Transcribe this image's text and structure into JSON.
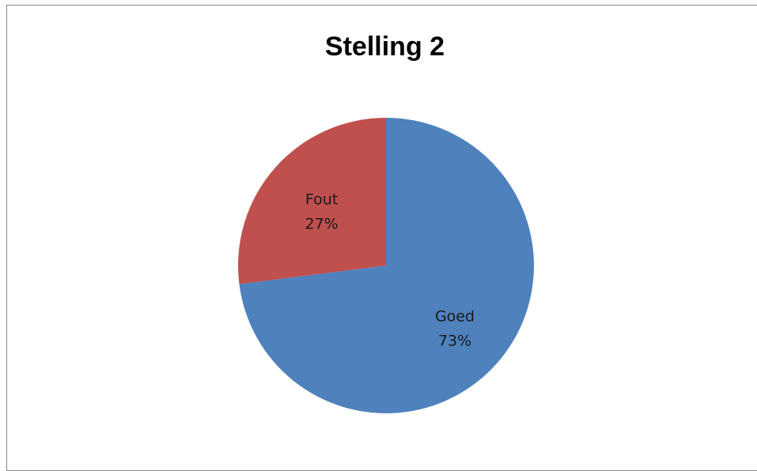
{
  "chart_data": {
    "type": "pie",
    "title": "Stelling 2",
    "categories": [
      "Goed",
      "Fout"
    ],
    "values": [
      73,
      27
    ],
    "labels": [
      {
        "category": "Goed",
        "percent": "73%"
      },
      {
        "category": "Fout",
        "percent": "27%"
      }
    ],
    "colors": [
      "#4F81BD",
      "#C0504D"
    ],
    "start": "12 o'clock",
    "direction": "clockwise",
    "legend": "none"
  }
}
